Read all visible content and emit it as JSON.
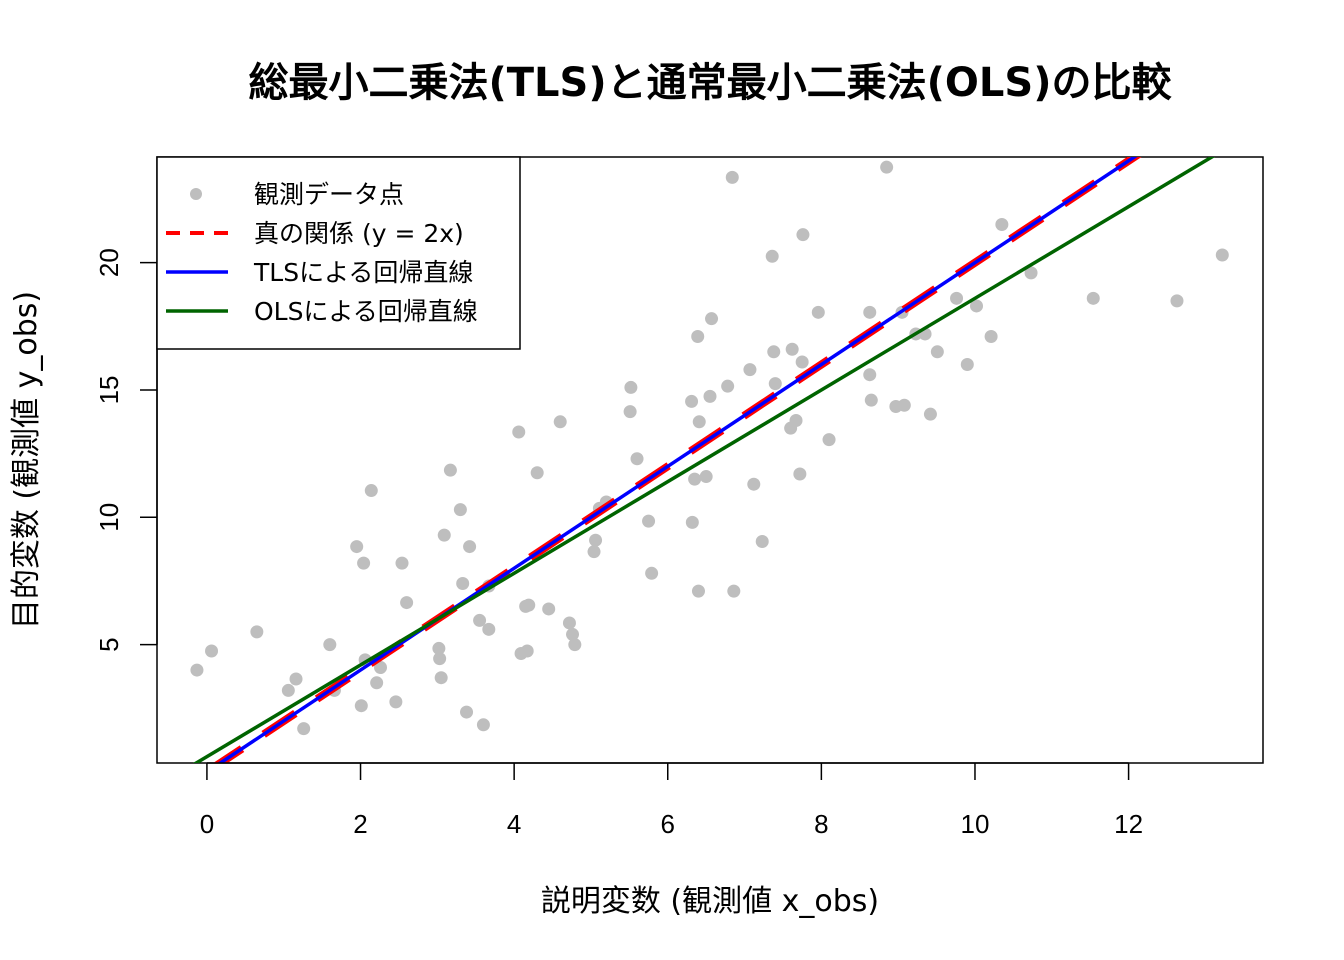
{
  "chart_data": {
    "type": "scatter",
    "title": "総最小二乗法(TLS)と通常最小二乗法(OLS)の比較",
    "xlabel": "説明変数 (観測値 x_obs)",
    "ylabel": "目的変数 (観測値 y_obs)",
    "xlim": [
      -0.65,
      13.75
    ],
    "ylim": [
      0.35,
      24.15
    ],
    "xticks": [
      0,
      2,
      4,
      6,
      8,
      10,
      12
    ],
    "yticks": [
      5,
      10,
      15,
      20
    ],
    "legend_position": "top-left",
    "colors": {
      "points": "#bebebe",
      "true": "#ff0000",
      "tls": "#0000ff",
      "ols": "#006400"
    },
    "legend": [
      {
        "label": "観測データ点",
        "kind": "point",
        "color": "#bebebe"
      },
      {
        "label": "真の関係 (y = 2x)",
        "kind": "dashed",
        "color": "#ff0000"
      },
      {
        "label": "TLSによる回帰直線",
        "kind": "line",
        "color": "#0000ff"
      },
      {
        "label": "OLSによる回帰直線",
        "kind": "line",
        "color": "#006400"
      }
    ],
    "lines": [
      {
        "name": "真の関係 (y = 2x)",
        "slope": 2.0,
        "intercept": 0.0,
        "style": "dashed",
        "color": "#ff0000"
      },
      {
        "name": "TLSによる回帰直線",
        "slope": 2.0,
        "intercept": 0.0,
        "style": "solid",
        "color": "#0000ff"
      },
      {
        "name": "OLSによる回帰直線",
        "slope": 1.8,
        "intercept": 0.6,
        "style": "solid",
        "color": "#006400"
      }
    ],
    "points": [
      [
        -0.13,
        4.0
      ],
      [
        0.06,
        4.75
      ],
      [
        0.65,
        5.5
      ],
      [
        1.06,
        3.2
      ],
      [
        1.16,
        3.65
      ],
      [
        1.26,
        1.7
      ],
      [
        1.6,
        5.0
      ],
      [
        1.66,
        3.2
      ],
      [
        1.95,
        8.85
      ],
      [
        2.01,
        2.6
      ],
      [
        2.04,
        8.2
      ],
      [
        2.06,
        4.4
      ],
      [
        2.14,
        11.05
      ],
      [
        2.21,
        3.5
      ],
      [
        2.26,
        4.1
      ],
      [
        2.46,
        2.75
      ],
      [
        2.54,
        8.2
      ],
      [
        2.6,
        6.65
      ],
      [
        3.02,
        4.85
      ],
      [
        3.03,
        4.45
      ],
      [
        3.05,
        3.7
      ],
      [
        3.09,
        9.3
      ],
      [
        3.17,
        11.85
      ],
      [
        3.3,
        10.3
      ],
      [
        3.33,
        7.4
      ],
      [
        3.38,
        2.35
      ],
      [
        3.42,
        8.85
      ],
      [
        3.55,
        5.95
      ],
      [
        3.6,
        1.85
      ],
      [
        3.67,
        5.6
      ],
      [
        3.67,
        7.3
      ],
      [
        4.06,
        13.35
      ],
      [
        4.09,
        4.65
      ],
      [
        4.15,
        6.5
      ],
      [
        4.19,
        6.55
      ],
      [
        4.17,
        4.75
      ],
      [
        4.3,
        11.75
      ],
      [
        4.45,
        6.4
      ],
      [
        4.6,
        13.75
      ],
      [
        4.72,
        5.85
      ],
      [
        4.76,
        5.4
      ],
      [
        4.79,
        5.0
      ],
      [
        5.04,
        8.65
      ],
      [
        5.06,
        9.1
      ],
      [
        5.11,
        10.35
      ],
      [
        5.2,
        10.6
      ],
      [
        5.51,
        14.15
      ],
      [
        5.52,
        15.1
      ],
      [
        5.6,
        12.3
      ],
      [
        5.75,
        9.85
      ],
      [
        5.79,
        7.8
      ],
      [
        6.31,
        14.55
      ],
      [
        6.32,
        9.8
      ],
      [
        6.35,
        11.5
      ],
      [
        6.39,
        17.1
      ],
      [
        6.4,
        7.1
      ],
      [
        6.41,
        13.75
      ],
      [
        6.5,
        11.6
      ],
      [
        6.55,
        14.75
      ],
      [
        6.57,
        17.8
      ],
      [
        6.78,
        15.15
      ],
      [
        6.86,
        7.1
      ],
      [
        6.84,
        23.35
      ],
      [
        7.07,
        15.8
      ],
      [
        7.12,
        11.3
      ],
      [
        7.23,
        9.05
      ],
      [
        7.36,
        20.25
      ],
      [
        7.38,
        16.5
      ],
      [
        7.4,
        15.25
      ],
      [
        7.6,
        13.5
      ],
      [
        7.62,
        16.6
      ],
      [
        7.67,
        13.8
      ],
      [
        7.72,
        11.7
      ],
      [
        7.75,
        16.1
      ],
      [
        7.76,
        21.1
      ],
      [
        7.96,
        18.05
      ],
      [
        8.1,
        13.05
      ],
      [
        8.63,
        18.05
      ],
      [
        8.63,
        15.6
      ],
      [
        8.65,
        14.6
      ],
      [
        8.85,
        23.75
      ],
      [
        8.97,
        14.35
      ],
      [
        9.05,
        18.05
      ],
      [
        9.08,
        14.4
      ],
      [
        9.23,
        17.2
      ],
      [
        9.35,
        17.2
      ],
      [
        9.42,
        14.05
      ],
      [
        9.51,
        16.5
      ],
      [
        9.76,
        18.6
      ],
      [
        9.9,
        16.0
      ],
      [
        10.02,
        18.3
      ],
      [
        10.21,
        17.1
      ],
      [
        10.35,
        21.5
      ],
      [
        10.73,
        19.6
      ],
      [
        11.54,
        18.6
      ],
      [
        12.63,
        18.5
      ],
      [
        13.22,
        20.3
      ]
    ]
  }
}
